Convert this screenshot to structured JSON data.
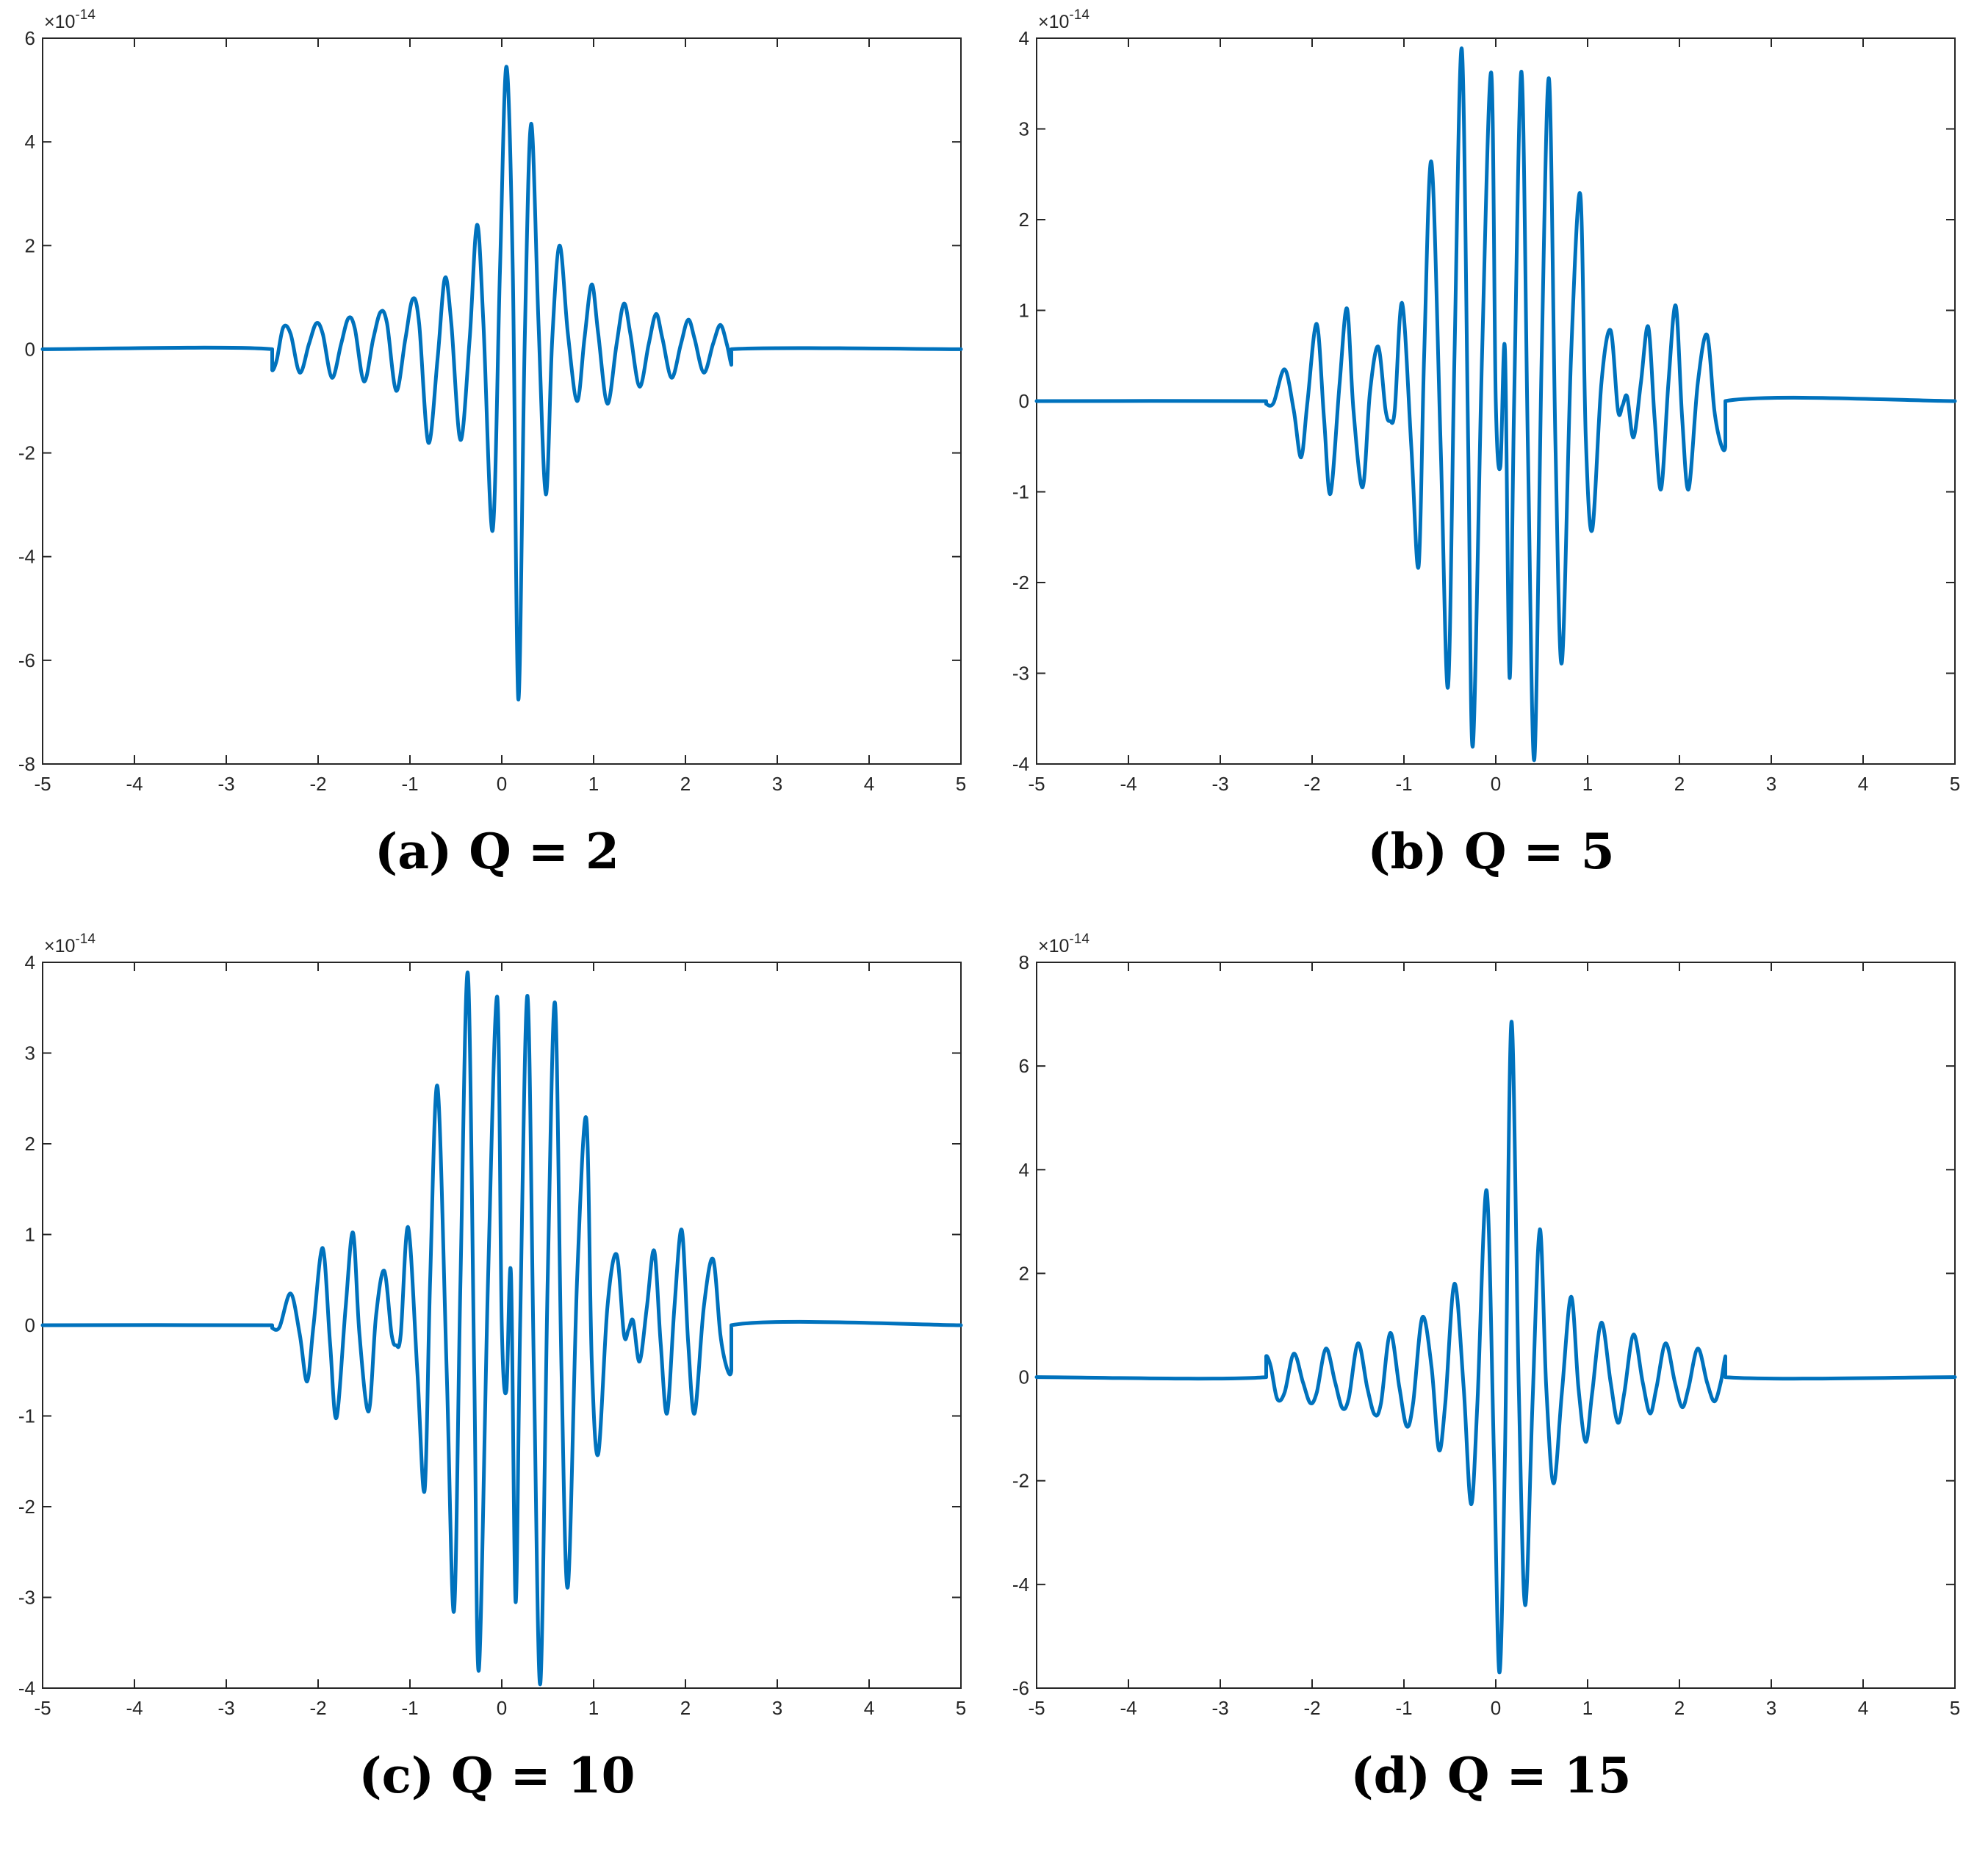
{
  "figure": {
    "panels": [
      {
        "caption_tag": "(a)",
        "caption_text": "Q = 2"
      },
      {
        "caption_tag": "(b)",
        "caption_text": "Q = 5"
      },
      {
        "caption_tag": "(c)",
        "caption_text": "Q = 10"
      },
      {
        "caption_tag": "(d)",
        "caption_text": "Q = 15"
      }
    ]
  },
  "chart_data": [
    {
      "type": "line",
      "title": "",
      "xlabel": "",
      "ylabel": "",
      "xlim": [
        -5,
        5
      ],
      "ylim": [
        -8,
        6
      ],
      "xticks": [
        -5,
        -4,
        -3,
        -2,
        -1,
        0,
        1,
        2,
        3,
        4,
        5
      ],
      "yticks": [
        -8,
        -6,
        -4,
        -2,
        0,
        2,
        4,
        6
      ],
      "y_exponent_label": "×10-14",
      "y_multiplier": "1e-14",
      "grid": false,
      "color": "#0072BD",
      "series": [
        {
          "x": [
            -5,
            -2.5,
            -2.5,
            -2.45,
            -2.38,
            -2.3,
            -2.2,
            -2.1,
            -2.02,
            -1.95,
            -1.85,
            -1.75,
            -1.67,
            -1.6,
            -1.5,
            -1.4,
            -1.32,
            -1.25,
            -1.15,
            -1.05,
            -0.97,
            -0.9,
            -0.8,
            -0.7,
            -0.62,
            -0.55,
            -0.45,
            -0.35,
            -0.27,
            -0.2,
            -0.1,
            -0.02,
            0.05,
            0.12,
            0.18,
            0.25,
            0.32,
            0.4,
            0.48,
            0.55,
            0.63,
            0.72,
            0.82,
            0.9,
            0.98,
            1.05,
            1.15,
            1.25,
            1.33,
            1.4,
            1.5,
            1.6,
            1.68,
            1.75,
            1.85,
            1.95,
            2.03,
            2.1,
            2.2,
            2.3,
            2.38,
            2.45,
            2.5,
            2.5,
            5
          ],
          "y": [
            0,
            0,
            -0.4,
            -0.2,
            0.42,
            0.3,
            -0.45,
            0.1,
            0.5,
            0.3,
            -0.55,
            0.1,
            0.6,
            0.4,
            -0.62,
            0.2,
            0.72,
            0.5,
            -0.8,
            0.2,
            0.97,
            0.5,
            -1.8,
            -0.2,
            1.37,
            0.5,
            -1.75,
            0.2,
            2.4,
            0.5,
            -3.5,
            1.5,
            5.45,
            1.5,
            -6.75,
            0.2,
            4.35,
            0.5,
            -2.8,
            0.2,
            2.0,
            0.3,
            -1.0,
            0.2,
            1.25,
            0.3,
            -1.05,
            0.1,
            0.88,
            0.3,
            -0.72,
            0.1,
            0.68,
            0.2,
            -0.55,
            0.1,
            0.57,
            0.2,
            -0.45,
            0.1,
            0.47,
            0.1,
            -0.3,
            0,
            0
          ]
        }
      ]
    },
    {
      "type": "line",
      "title": "",
      "xlabel": "",
      "ylabel": "",
      "xlim": [
        -5,
        5
      ],
      "ylim": [
        -4,
        4
      ],
      "xticks": [
        -5,
        -4,
        -3,
        -2,
        -1,
        0,
        1,
        2,
        3,
        4,
        5
      ],
      "yticks": [
        -4,
        -3,
        -2,
        -1,
        0,
        1,
        2,
        3,
        4
      ],
      "y_exponent_label": "×10-14",
      "y_multiplier": "1e-14",
      "grid": false,
      "color": "#0072BD",
      "series": [
        {
          "x": [
            -5,
            -2.5,
            -2.5,
            -2.42,
            -2.3,
            -2.2,
            -2.12,
            -2.05,
            -1.95,
            -1.87,
            -1.8,
            -1.7,
            -1.62,
            -1.55,
            -1.45,
            -1.37,
            -1.28,
            -1.2,
            -1.15,
            -1.1,
            -1.02,
            -0.92,
            -0.84,
            -0.78,
            -0.7,
            -0.6,
            -0.52,
            -0.45,
            -0.37,
            -0.3,
            -0.25,
            -0.15,
            -0.05,
            0,
            0.05,
            0.1,
            0.15,
            0.2,
            0.28,
            0.35,
            0.42,
            0.5,
            0.58,
            0.65,
            0.72,
            0.82,
            0.92,
            0.98,
            1.05,
            1.15,
            1.25,
            1.33,
            1.38,
            1.43,
            1.5,
            1.58,
            1.66,
            1.73,
            1.8,
            1.88,
            1.96,
            2.03,
            2.1,
            2.2,
            2.3,
            2.38,
            2.45,
            2.5,
            2.5,
            5
          ],
          "y": [
            0,
            0,
            -0.03,
            -0.02,
            0.35,
            -0.1,
            -0.62,
            0,
            0.85,
            -0.2,
            -1.02,
            0.2,
            1.02,
            -0.1,
            -0.95,
            0.1,
            0.6,
            -0.1,
            -0.22,
            -0.1,
            1.08,
            -0.5,
            -1.82,
            0.5,
            2.63,
            -0.5,
            -3.15,
            0.5,
            3.88,
            -0.5,
            -3.8,
            0.5,
            3.62,
            0,
            -0.72,
            0.57,
            -3.05,
            0,
            3.63,
            -0.5,
            -3.95,
            0.5,
            3.55,
            -0.5,
            -2.88,
            0.5,
            2.28,
            -0.4,
            -1.42,
            0.2,
            0.78,
            -0.1,
            -0.05,
            0.05,
            -0.4,
            0.2,
            0.82,
            -0.2,
            -0.97,
            0.2,
            1.05,
            -0.2,
            -0.97,
            0.2,
            0.73,
            -0.1,
            -0.47,
            -0.5,
            0,
            0
          ]
        }
      ]
    },
    {
      "type": "line",
      "title": "",
      "xlabel": "",
      "ylabel": "",
      "xlim": [
        -5,
        5
      ],
      "ylim": [
        -4,
        4
      ],
      "xticks": [
        -5,
        -4,
        -3,
        -2,
        -1,
        0,
        1,
        2,
        3,
        4,
        5
      ],
      "yticks": [
        -4,
        -3,
        -2,
        -1,
        0,
        1,
        2,
        3,
        4
      ],
      "y_exponent_label": "×10-14",
      "y_multiplier": "1e-14",
      "grid": false,
      "color": "#0072BD",
      "series": [
        {
          "x": [
            -5,
            -2.5,
            -2.5,
            -2.42,
            -2.3,
            -2.2,
            -2.12,
            -2.05,
            -1.95,
            -1.87,
            -1.8,
            -1.7,
            -1.62,
            -1.55,
            -1.45,
            -1.37,
            -1.28,
            -1.2,
            -1.15,
            -1.1,
            -1.02,
            -0.92,
            -0.84,
            -0.78,
            -0.7,
            -0.6,
            -0.52,
            -0.45,
            -0.37,
            -0.3,
            -0.25,
            -0.15,
            -0.05,
            0,
            0.05,
            0.1,
            0.15,
            0.2,
            0.28,
            0.35,
            0.42,
            0.5,
            0.58,
            0.65,
            0.72,
            0.82,
            0.92,
            0.98,
            1.05,
            1.15,
            1.25,
            1.33,
            1.38,
            1.43,
            1.5,
            1.58,
            1.66,
            1.73,
            1.8,
            1.88,
            1.96,
            2.03,
            2.1,
            2.2,
            2.3,
            2.38,
            2.45,
            2.5,
            2.5,
            5
          ],
          "y": [
            0,
            0,
            -0.03,
            -0.02,
            0.35,
            -0.1,
            -0.62,
            0,
            0.85,
            -0.2,
            -1.02,
            0.2,
            1.02,
            -0.1,
            -0.95,
            0.1,
            0.6,
            -0.1,
            -0.22,
            -0.1,
            1.08,
            -0.5,
            -1.82,
            0.5,
            2.63,
            -0.5,
            -3.15,
            0.5,
            3.88,
            -0.5,
            -3.8,
            0.5,
            3.62,
            0,
            -0.72,
            0.57,
            -3.05,
            0,
            3.63,
            -0.5,
            -3.95,
            0.5,
            3.55,
            -0.5,
            -2.88,
            0.5,
            2.28,
            -0.4,
            -1.42,
            0.2,
            0.78,
            -0.1,
            -0.05,
            0.05,
            -0.4,
            0.2,
            0.82,
            -0.2,
            -0.97,
            0.2,
            1.05,
            -0.2,
            -0.97,
            0.2,
            0.73,
            -0.1,
            -0.47,
            -0.5,
            0,
            0
          ]
        }
      ]
    },
    {
      "type": "line",
      "title": "",
      "xlabel": "",
      "ylabel": "",
      "xlim": [
        -5,
        5
      ],
      "ylim": [
        -6,
        8
      ],
      "xticks": [
        -5,
        -4,
        -3,
        -2,
        -1,
        0,
        1,
        2,
        3,
        4,
        5
      ],
      "yticks": [
        -6,
        -4,
        -2,
        0,
        2,
        4,
        6,
        8
      ],
      "y_exponent_label": "×10-14",
      "y_multiplier": "1e-14",
      "grid": false,
      "color": "#0072BD",
      "series": [
        {
          "x": [
            -5,
            -2.5,
            -2.5,
            -2.45,
            -2.38,
            -2.3,
            -2.2,
            -2.1,
            -2.02,
            -1.95,
            -1.85,
            -1.75,
            -1.67,
            -1.6,
            -1.5,
            -1.4,
            -1.32,
            -1.25,
            -1.15,
            -1.05,
            -0.97,
            -0.9,
            -0.8,
            -0.7,
            -0.62,
            -0.55,
            -0.45,
            -0.35,
            -0.27,
            -0.2,
            -0.1,
            -0.02,
            0.04,
            0.1,
            0.17,
            0.25,
            0.32,
            0.4,
            0.48,
            0.55,
            0.63,
            0.72,
            0.82,
            0.9,
            0.98,
            1.05,
            1.15,
            1.25,
            1.33,
            1.4,
            1.5,
            1.6,
            1.68,
            1.75,
            1.85,
            1.95,
            2.03,
            2.1,
            2.2,
            2.3,
            2.38,
            2.45,
            2.5,
            2.5,
            5
          ],
          "y": [
            0,
            0,
            0.4,
            0.2,
            -0.42,
            -0.3,
            0.45,
            -0.1,
            -0.5,
            -0.3,
            0.55,
            -0.1,
            -0.6,
            -0.4,
            0.65,
            -0.2,
            -0.72,
            -0.5,
            0.85,
            -0.2,
            -0.95,
            -0.5,
            1.15,
            0.2,
            -1.4,
            -0.5,
            1.8,
            -0.2,
            -2.45,
            -0.5,
            3.6,
            -1.5,
            -5.7,
            -1.5,
            6.85,
            -0.2,
            -4.4,
            -0.5,
            2.85,
            -0.2,
            -2.05,
            -0.3,
            1.55,
            -0.2,
            -1.25,
            -0.3,
            1.05,
            -0.1,
            -0.88,
            -0.3,
            0.82,
            -0.1,
            -0.7,
            -0.2,
            0.65,
            -0.1,
            -0.58,
            -0.2,
            0.55,
            -0.1,
            -0.47,
            -0.1,
            0.4,
            0,
            0
          ]
        }
      ]
    }
  ]
}
